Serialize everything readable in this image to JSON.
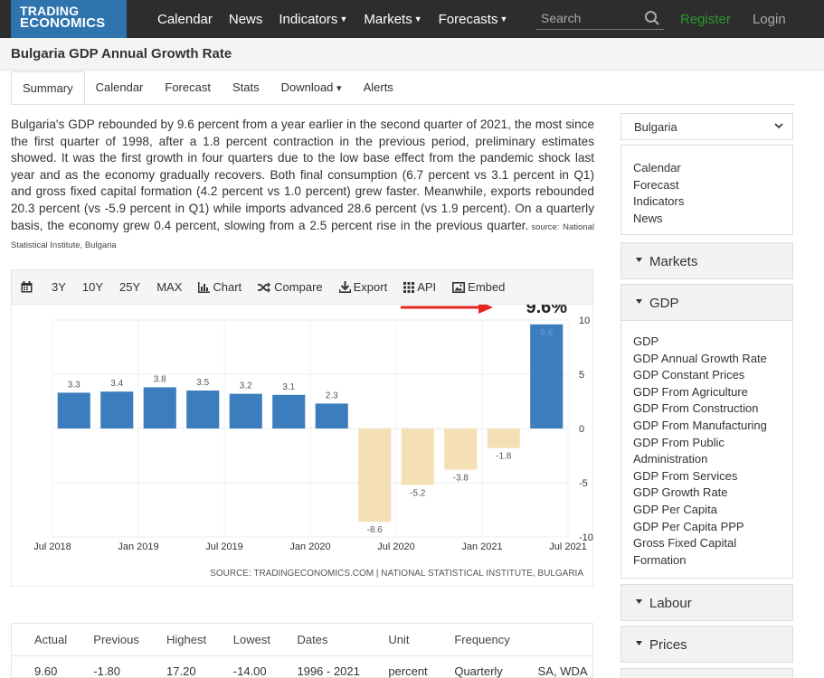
{
  "nav": {
    "logo_line1": "TRADING",
    "logo_line2": "ECONOMICS",
    "items": [
      {
        "label": "Calendar",
        "dropdown": false
      },
      {
        "label": "News",
        "dropdown": false
      },
      {
        "label": "Indicators",
        "dropdown": true
      },
      {
        "label": "Markets",
        "dropdown": true
      },
      {
        "label": "Forecasts",
        "dropdown": true
      }
    ],
    "search_placeholder": "Search",
    "register": "Register",
    "login": "Login"
  },
  "page": {
    "title": "Bulgaria GDP Annual Growth Rate",
    "tabs": [
      "Summary",
      "Calendar",
      "Forecast",
      "Stats",
      "Download",
      "Alerts"
    ],
    "download_caret": "▾",
    "description": "Bulgaria's GDP rebounded by 9.6 percent from a year earlier in the second quarter of 2021, the most since the first quarter of 1998, after a 1.8 percent contraction in the previous period, preliminary estimates showed. It was the first growth in four quarters due to the low base effect from the pandemic shock last year and as the economy gradually recovers. Both final consumption (6.7 percent vs 3.1 percent in Q1) and gross fixed capital formation (4.2 percent vs 1.0 percent) grew faster. Meanwhile, exports rebounded 20.3 percent (vs -5.9 percent in Q1) while imports advanced 28.6 percent (vs 1.9 percent). On a quarterly basis, the economy grew 0.4 percent, slowing from a 2.5 percent rise in the previous quarter.",
    "source_note": "source: National Statistical Institute, Bulgaria"
  },
  "chart_toolbar": {
    "ranges": [
      "3Y",
      "10Y",
      "25Y",
      "MAX"
    ],
    "chart": "Chart",
    "compare": "Compare",
    "export": "Export",
    "api": "API",
    "embed": "Embed"
  },
  "chart_data": {
    "type": "bar",
    "title": "",
    "xlabel": "",
    "ylabel": "",
    "categories": [
      "2018 Q3",
      "2018 Q4",
      "2019 Q1",
      "2019 Q2",
      "2019 Q3",
      "2019 Q4",
      "2020 Q1",
      "2020 Q2",
      "2020 Q3",
      "2020 Q4",
      "2021 Q1",
      "2021 Q2"
    ],
    "values": [
      3.3,
      3.4,
      3.8,
      3.5,
      3.2,
      3.1,
      2.3,
      -8.6,
      -5.2,
      -3.8,
      -1.8,
      9.6
    ],
    "labels": [
      "3.3",
      "3.4",
      "3.8",
      "3.5",
      "3.2",
      "3.1",
      "2.3",
      "-8.6",
      "-5.2",
      "-3.8",
      "-1.8",
      "9.6"
    ],
    "x_ticks": [
      "Jul 2018",
      "Jan 2019",
      "Jul 2019",
      "Jan 2020",
      "Jul 2020",
      "Jan 2021",
      "Jul 2021"
    ],
    "y_ticks": [
      "10",
      "5",
      "0",
      "-5",
      "-10"
    ],
    "ylim": [
      -10,
      10
    ],
    "grid": true,
    "positive_color": "#3c7dbd",
    "negative_color": "#f5e0b6",
    "annotation": "9.6%",
    "annotation_color": "#e52520",
    "source": "SOURCE: TRADINGECONOMICS.COM | NATIONAL STATISTICAL INSTITUTE, BULGARIA"
  },
  "stats": {
    "headers": [
      "Actual",
      "Previous",
      "Highest",
      "Lowest",
      "Dates",
      "Unit",
      "Frequency",
      ""
    ],
    "values": [
      "9.60",
      "-1.80",
      "17.20",
      "-14.00",
      "1996 - 2021",
      "percent",
      "Quarterly",
      "SA, WDA"
    ]
  },
  "sidebar": {
    "country": "Bulgaria",
    "links": [
      "Calendar",
      "Forecast",
      "Indicators",
      "News"
    ],
    "sections": {
      "markets": "Markets",
      "gdp": "GDP",
      "labour": "Labour",
      "prices": "Prices"
    },
    "gdp_links": [
      "GDP",
      "GDP Annual Growth Rate",
      "GDP Constant Prices",
      "GDP From Agriculture",
      "GDP From Construction",
      "GDP From Manufacturing",
      "GDP From Public Administration",
      "GDP From Services",
      "GDP Growth Rate",
      "GDP Per Capita",
      "GDP Per Capita PPP",
      "Gross Fixed Capital Formation"
    ]
  }
}
